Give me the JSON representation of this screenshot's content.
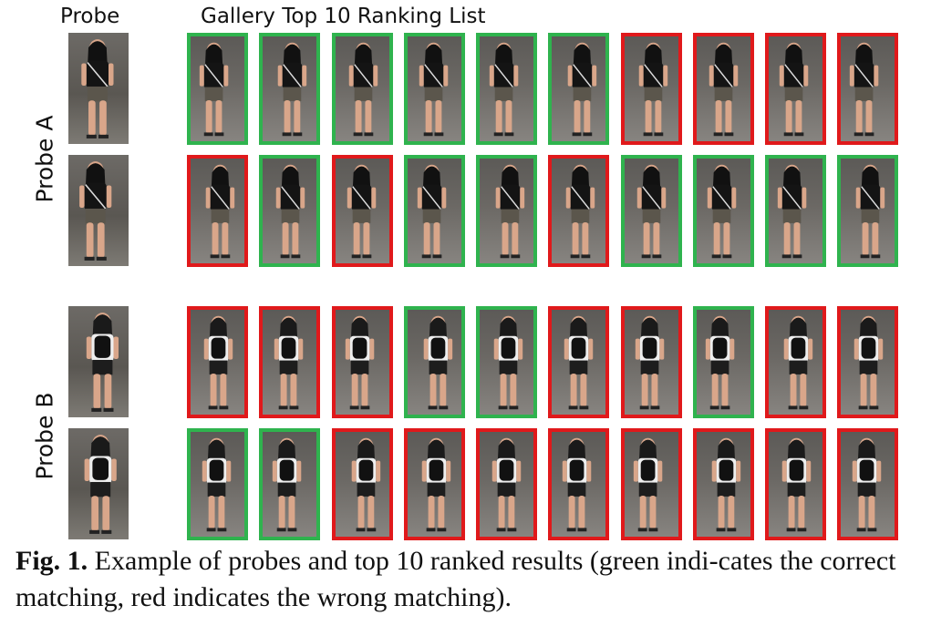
{
  "headers": {
    "probe": "Probe",
    "gallery": "Gallery Top 10 Ranking  List"
  },
  "row_labels": {
    "a": "Probe  A",
    "b": "Probe  B"
  },
  "colors": {
    "correct": "#2fb34e",
    "wrong": "#e0191b"
  },
  "rows": [
    {
      "probe": "A",
      "matches": [
        "correct",
        "correct",
        "correct",
        "correct",
        "correct",
        "correct",
        "wrong",
        "wrong",
        "wrong",
        "wrong"
      ]
    },
    {
      "probe": "A",
      "matches": [
        "wrong",
        "correct",
        "wrong",
        "correct",
        "correct",
        "wrong",
        "correct",
        "correct",
        "correct",
        "correct"
      ]
    },
    {
      "probe": "B",
      "matches": [
        "wrong",
        "wrong",
        "wrong",
        "correct",
        "correct",
        "wrong",
        "wrong",
        "correct",
        "wrong",
        "wrong"
      ]
    },
    {
      "probe": "B",
      "matches": [
        "correct",
        "correct",
        "wrong",
        "wrong",
        "wrong",
        "wrong",
        "wrong",
        "wrong",
        "wrong",
        "wrong"
      ]
    }
  ],
  "caption": {
    "label": "Fig. 1.",
    "text": "Example of probes and top 10 ranked results (green indi-cates the correct matching, red indicates the wrong matching)."
  }
}
